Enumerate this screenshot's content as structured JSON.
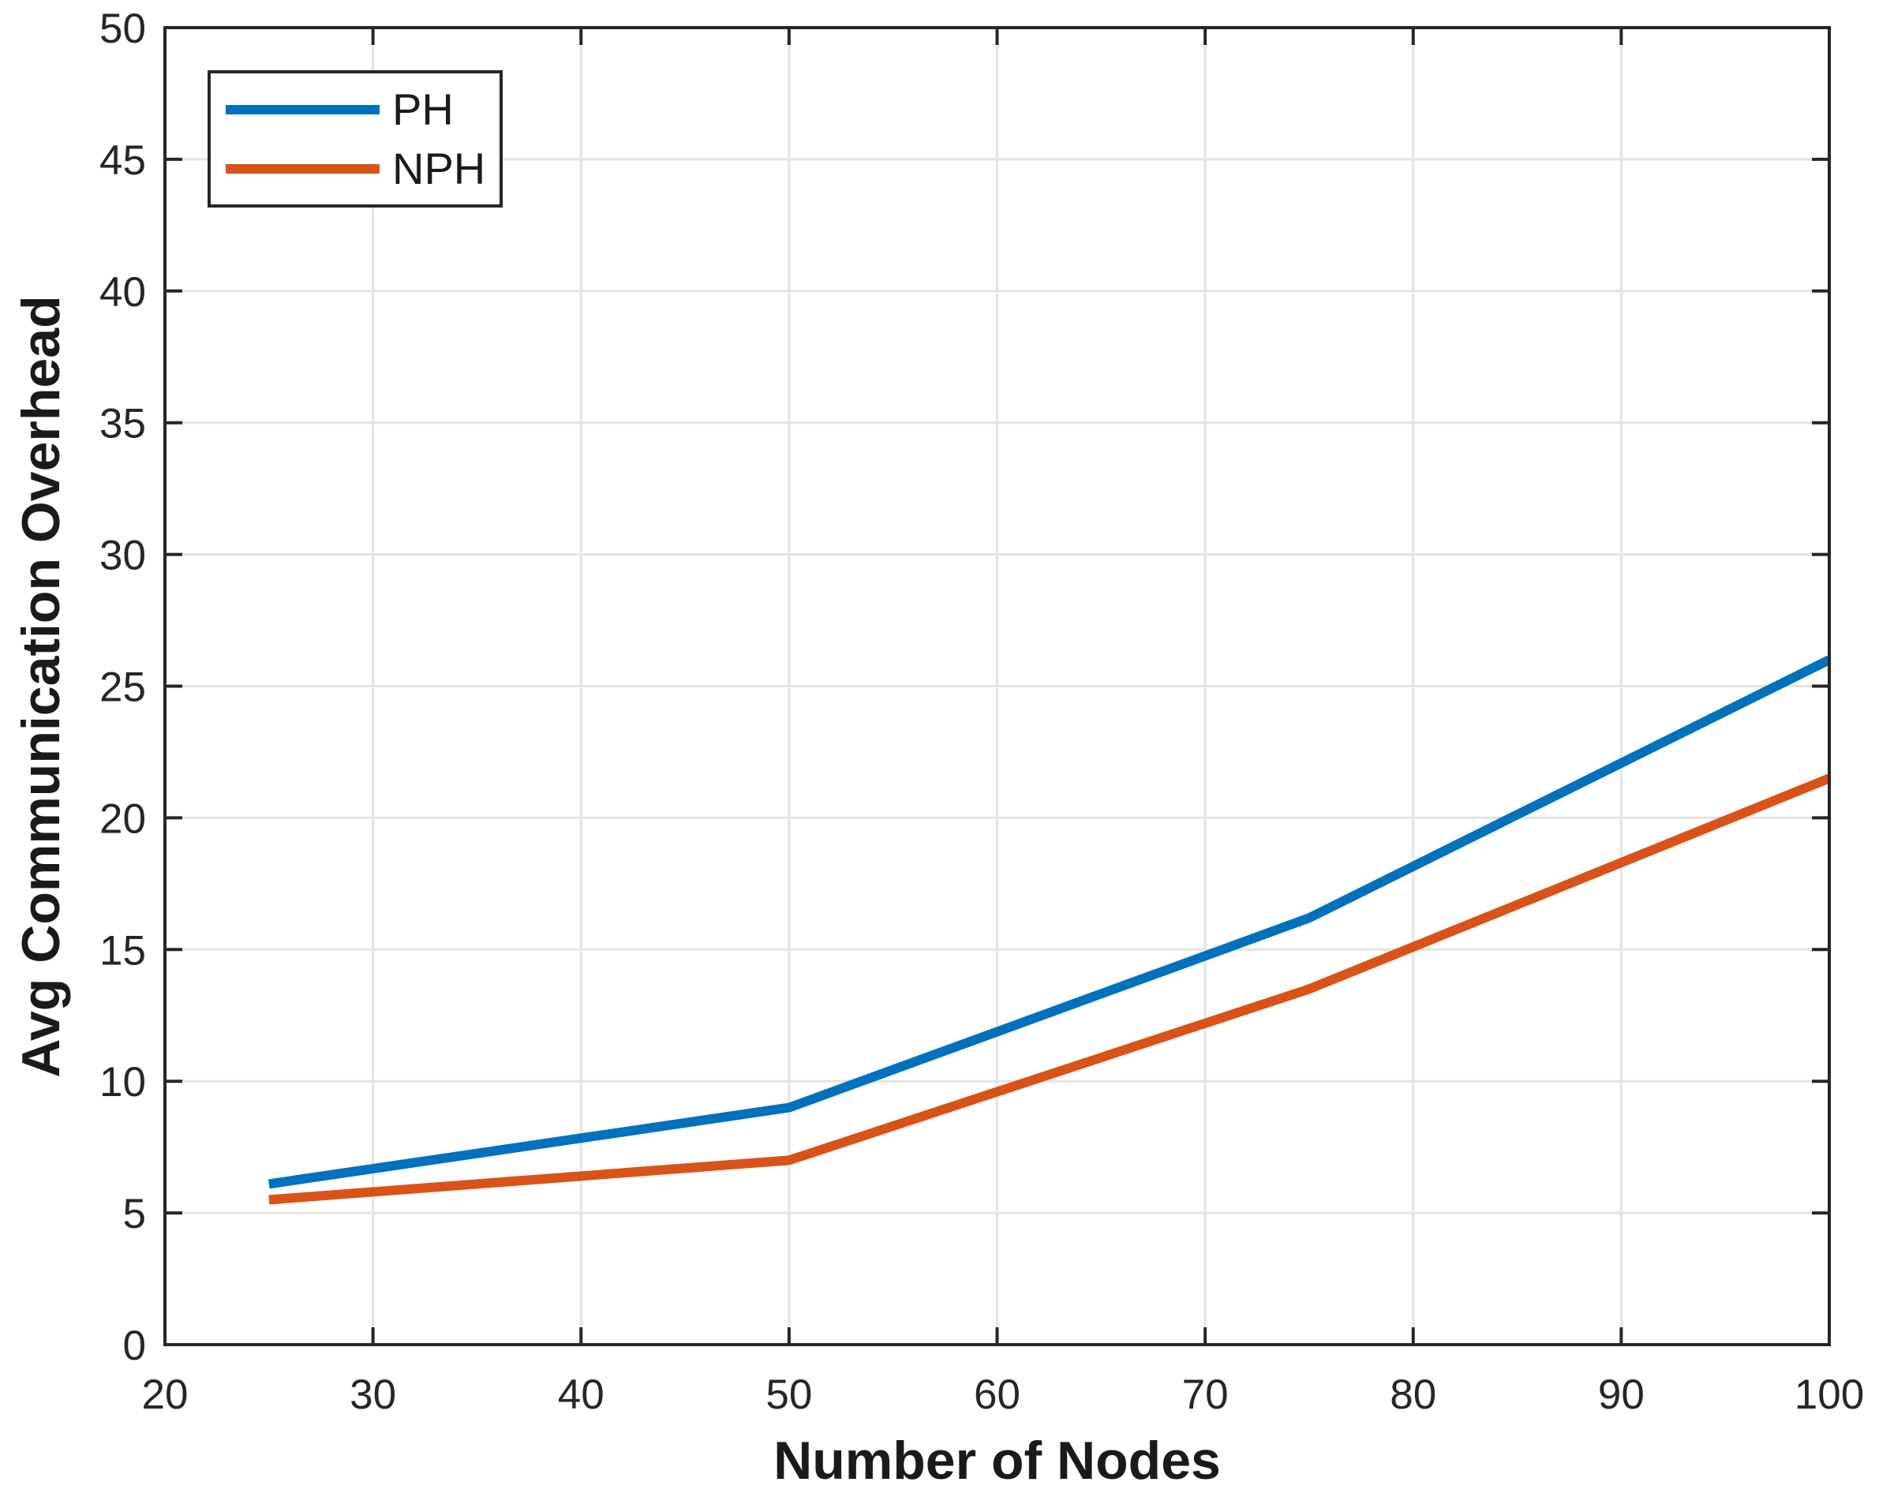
{
  "figure": {
    "background": "#ffffff",
    "axes_color": "#262626",
    "grid_color": "#e3e3e3",
    "tick_label_color": "#262626"
  },
  "chart_data": {
    "type": "line",
    "title": "",
    "xlabel": "Number of Nodes",
    "ylabel": "Avg Communication Overhead",
    "xlim": [
      20,
      100
    ],
    "ylim": [
      0,
      50
    ],
    "xticks": [
      20,
      30,
      40,
      50,
      60,
      70,
      80,
      90,
      100
    ],
    "yticks": [
      0,
      5,
      10,
      15,
      20,
      25,
      30,
      35,
      40,
      45,
      50
    ],
    "grid": true,
    "legend_position": "top-left",
    "x": [
      25,
      50,
      75,
      100
    ],
    "series": [
      {
        "name": "PH",
        "color": "#0072BD",
        "values": [
          6.1,
          9.0,
          16.2,
          26.0
        ]
      },
      {
        "name": "NPH",
        "color": "#D95319",
        "values": [
          5.5,
          7.0,
          13.5,
          21.5
        ]
      }
    ],
    "line_width": 12
  }
}
